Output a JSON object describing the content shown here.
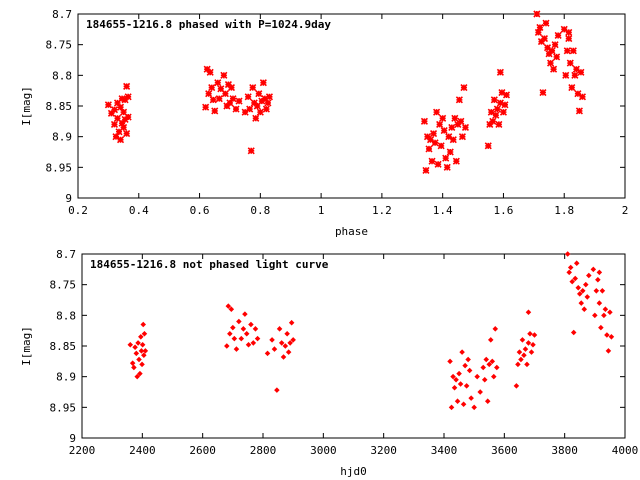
{
  "chart_data": [
    {
      "type": "scatter",
      "title": "184655-1216.8 phased with P=1024.9day",
      "xlabel": "phase",
      "ylabel": "I[mag]",
      "xlim": [
        0.2,
        2
      ],
      "ylim": [
        8.7,
        9
      ],
      "y_inverted": true,
      "xticks": [
        0.2,
        0.4,
        0.6,
        0.8,
        1,
        1.2,
        1.4,
        1.6,
        1.8,
        2
      ],
      "xtick_labels": [
        "0.2",
        "0.4",
        "0.6",
        "0.8",
        "1",
        "1.2",
        "1.4",
        "1.6",
        "1.8",
        "2"
      ],
      "yticks": [
        8.7,
        8.75,
        8.8,
        8.85,
        8.9,
        8.95,
        9
      ],
      "ytick_labels": [
        "8.7",
        "8.75",
        "8.8",
        "8.85",
        "8.9",
        "8.95",
        "9"
      ],
      "grid": false,
      "marker_color": "#ff0000",
      "marker": "asterisk",
      "points": [
        [
          0.3,
          8.848
        ],
        [
          0.31,
          8.862
        ],
        [
          0.32,
          8.88
        ],
        [
          0.32,
          8.856
        ],
        [
          0.325,
          8.9
        ],
        [
          0.33,
          8.845
        ],
        [
          0.33,
          8.87
        ],
        [
          0.335,
          8.892
        ],
        [
          0.34,
          8.852
        ],
        [
          0.34,
          8.905
        ],
        [
          0.345,
          8.838
        ],
        [
          0.345,
          8.878
        ],
        [
          0.35,
          8.86
        ],
        [
          0.35,
          8.885
        ],
        [
          0.355,
          8.84
        ],
        [
          0.355,
          8.872
        ],
        [
          0.36,
          8.818
        ],
        [
          0.36,
          8.895
        ],
        [
          0.365,
          8.835
        ],
        [
          0.365,
          8.868
        ],
        [
          0.62,
          8.852
        ],
        [
          0.625,
          8.79
        ],
        [
          0.63,
          8.83
        ],
        [
          0.635,
          8.795
        ],
        [
          0.64,
          8.82
        ],
        [
          0.645,
          8.84
        ],
        [
          0.65,
          8.858
        ],
        [
          0.66,
          8.812
        ],
        [
          0.665,
          8.838
        ],
        [
          0.67,
          8.822
        ],
        [
          0.68,
          8.8
        ],
        [
          0.685,
          8.83
        ],
        [
          0.69,
          8.85
        ],
        [
          0.695,
          8.815
        ],
        [
          0.7,
          8.845
        ],
        [
          0.705,
          8.82
        ],
        [
          0.71,
          8.838
        ],
        [
          0.72,
          8.855
        ],
        [
          0.73,
          8.842
        ],
        [
          0.75,
          8.86
        ],
        [
          0.76,
          8.835
        ],
        [
          0.765,
          8.855
        ],
        [
          0.77,
          8.923
        ],
        [
          0.775,
          8.82
        ],
        [
          0.78,
          8.845
        ],
        [
          0.785,
          8.87
        ],
        [
          0.79,
          8.85
        ],
        [
          0.795,
          8.83
        ],
        [
          0.8,
          8.86
        ],
        [
          0.805,
          8.842
        ],
        [
          0.81,
          8.812
        ],
        [
          0.815,
          8.838
        ],
        [
          0.82,
          8.855
        ],
        [
          0.825,
          8.845
        ],
        [
          0.83,
          8.835
        ],
        [
          1.34,
          8.875
        ],
        [
          1.345,
          8.955
        ],
        [
          1.35,
          8.9
        ],
        [
          1.355,
          8.92
        ],
        [
          1.36,
          8.905
        ],
        [
          1.365,
          8.94
        ],
        [
          1.37,
          8.895
        ],
        [
          1.375,
          8.91
        ],
        [
          1.38,
          8.86
        ],
        [
          1.385,
          8.945
        ],
        [
          1.39,
          8.88
        ],
        [
          1.395,
          8.915
        ],
        [
          1.4,
          8.87
        ],
        [
          1.405,
          8.89
        ],
        [
          1.41,
          8.935
        ],
        [
          1.415,
          8.95
        ],
        [
          1.42,
          8.9
        ],
        [
          1.425,
          8.925
        ],
        [
          1.43,
          8.885
        ],
        [
          1.435,
          8.905
        ],
        [
          1.44,
          8.87
        ],
        [
          1.445,
          8.94
        ],
        [
          1.45,
          8.88
        ],
        [
          1.455,
          8.84
        ],
        [
          1.46,
          8.875
        ],
        [
          1.465,
          8.9
        ],
        [
          1.47,
          8.82
        ],
        [
          1.475,
          8.885
        ],
        [
          1.55,
          8.915
        ],
        [
          1.555,
          8.88
        ],
        [
          1.56,
          8.86
        ],
        [
          1.565,
          8.875
        ],
        [
          1.57,
          8.84
        ],
        [
          1.575,
          8.865
        ],
        [
          1.58,
          8.855
        ],
        [
          1.585,
          8.88
        ],
        [
          1.59,
          8.845
        ],
        [
          1.595,
          8.828
        ],
        [
          1.6,
          8.86
        ],
        [
          1.605,
          8.848
        ],
        [
          1.61,
          8.832
        ],
        [
          1.59,
          8.795
        ],
        [
          1.71,
          8.7
        ],
        [
          1.715,
          8.73
        ],
        [
          1.72,
          8.722
        ],
        [
          1.725,
          8.745
        ],
        [
          1.73,
          8.828
        ],
        [
          1.735,
          8.74
        ],
        [
          1.74,
          8.715
        ],
        [
          1.745,
          8.755
        ],
        [
          1.75,
          8.765
        ],
        [
          1.755,
          8.78
        ],
        [
          1.76,
          8.76
        ],
        [
          1.765,
          8.79
        ],
        [
          1.77,
          8.75
        ],
        [
          1.775,
          8.77
        ],
        [
          1.78,
          8.735
        ],
        [
          1.8,
          8.725
        ],
        [
          1.805,
          8.8
        ],
        [
          1.81,
          8.76
        ],
        [
          1.815,
          8.74
        ],
        [
          1.82,
          8.78
        ],
        [
          1.825,
          8.82
        ],
        [
          1.83,
          8.76
        ],
        [
          1.835,
          8.8
        ],
        [
          1.84,
          8.79
        ],
        [
          1.845,
          8.83
        ],
        [
          1.85,
          8.858
        ],
        [
          1.855,
          8.795
        ],
        [
          1.86,
          8.835
        ],
        [
          1.815,
          8.73
        ]
      ]
    },
    {
      "type": "scatter",
      "title": "184655-1216.8 not phased light curve",
      "xlabel": "hjd0",
      "ylabel": "I[mag]",
      "xlim": [
        2200,
        4000
      ],
      "ylim": [
        8.7,
        9
      ],
      "y_inverted": true,
      "xticks": [
        2200,
        2400,
        2600,
        2800,
        3000,
        3200,
        3400,
        3600,
        3800,
        4000
      ],
      "xtick_labels": [
        "2200",
        "2400",
        "2600",
        "2800",
        "3000",
        "3200",
        "3400",
        "3600",
        "3800",
        "4000"
      ],
      "yticks": [
        8.7,
        8.75,
        8.8,
        8.85,
        8.9,
        8.95,
        9
      ],
      "ytick_labels": [
        "8.7",
        "8.75",
        "8.8",
        "8.85",
        "8.9",
        "8.95",
        "9"
      ],
      "grid": false,
      "marker_color": "#ff0000",
      "marker": "diamond",
      "points": [
        [
          2360,
          8.848
        ],
        [
          2368,
          8.878
        ],
        [
          2372,
          8.885
        ],
        [
          2376,
          8.852
        ],
        [
          2380,
          8.862
        ],
        [
          2383,
          8.9
        ],
        [
          2386,
          8.845
        ],
        [
          2389,
          8.872
        ],
        [
          2392,
          8.895
        ],
        [
          2395,
          8.835
        ],
        [
          2397,
          8.858
        ],
        [
          2399,
          8.88
        ],
        [
          2401,
          8.848
        ],
        [
          2403,
          8.815
        ],
        [
          2405,
          8.865
        ],
        [
          2407,
          8.83
        ],
        [
          2410,
          8.858
        ],
        [
          2680,
          8.85
        ],
        [
          2685,
          8.785
        ],
        [
          2690,
          8.83
        ],
        [
          2695,
          8.79
        ],
        [
          2700,
          8.82
        ],
        [
          2705,
          8.838
        ],
        [
          2712,
          8.855
        ],
        [
          2720,
          8.81
        ],
        [
          2728,
          8.838
        ],
        [
          2735,
          8.822
        ],
        [
          2740,
          8.798
        ],
        [
          2746,
          8.83
        ],
        [
          2752,
          8.848
        ],
        [
          2760,
          8.815
        ],
        [
          2768,
          8.845
        ],
        [
          2775,
          8.822
        ],
        [
          2782,
          8.838
        ],
        [
          2815,
          8.862
        ],
        [
          2830,
          8.84
        ],
        [
          2838,
          8.855
        ],
        [
          2846,
          8.922
        ],
        [
          2855,
          8.822
        ],
        [
          2862,
          8.845
        ],
        [
          2868,
          8.868
        ],
        [
          2874,
          8.85
        ],
        [
          2880,
          8.83
        ],
        [
          2885,
          8.86
        ],
        [
          2890,
          8.845
        ],
        [
          2895,
          8.812
        ],
        [
          2900,
          8.84
        ],
        [
          3420,
          8.875
        ],
        [
          3425,
          8.95
        ],
        [
          3430,
          8.9
        ],
        [
          3435,
          8.918
        ],
        [
          3440,
          8.905
        ],
        [
          3445,
          8.94
        ],
        [
          3450,
          8.895
        ],
        [
          3455,
          8.912
        ],
        [
          3460,
          8.86
        ],
        [
          3465,
          8.945
        ],
        [
          3470,
          8.882
        ],
        [
          3475,
          8.915
        ],
        [
          3480,
          8.872
        ],
        [
          3485,
          8.89
        ],
        [
          3490,
          8.935
        ],
        [
          3500,
          8.95
        ],
        [
          3510,
          8.9
        ],
        [
          3520,
          8.925
        ],
        [
          3530,
          8.885
        ],
        [
          3535,
          8.905
        ],
        [
          3540,
          8.872
        ],
        [
          3545,
          8.94
        ],
        [
          3550,
          8.88
        ],
        [
          3555,
          8.84
        ],
        [
          3560,
          8.875
        ],
        [
          3565,
          8.9
        ],
        [
          3570,
          8.822
        ],
        [
          3575,
          8.885
        ],
        [
          3640,
          8.915
        ],
        [
          3645,
          8.88
        ],
        [
          3650,
          8.86
        ],
        [
          3655,
          8.872
        ],
        [
          3660,
          8.84
        ],
        [
          3665,
          8.865
        ],
        [
          3670,
          8.855
        ],
        [
          3675,
          8.88
        ],
        [
          3680,
          8.845
        ],
        [
          3685,
          8.83
        ],
        [
          3690,
          8.86
        ],
        [
          3695,
          8.848
        ],
        [
          3700,
          8.832
        ],
        [
          3680,
          8.795
        ],
        [
          3810,
          8.7
        ],
        [
          3815,
          8.73
        ],
        [
          3820,
          8.722
        ],
        [
          3825,
          8.745
        ],
        [
          3830,
          8.828
        ],
        [
          3835,
          8.74
        ],
        [
          3840,
          8.715
        ],
        [
          3845,
          8.755
        ],
        [
          3850,
          8.765
        ],
        [
          3855,
          8.78
        ],
        [
          3860,
          8.76
        ],
        [
          3865,
          8.79
        ],
        [
          3870,
          8.75
        ],
        [
          3875,
          8.77
        ],
        [
          3880,
          8.735
        ],
        [
          3895,
          8.725
        ],
        [
          3900,
          8.8
        ],
        [
          3905,
          8.76
        ],
        [
          3910,
          8.742
        ],
        [
          3915,
          8.78
        ],
        [
          3920,
          8.82
        ],
        [
          3925,
          8.76
        ],
        [
          3930,
          8.8
        ],
        [
          3935,
          8.79
        ],
        [
          3940,
          8.832
        ],
        [
          3945,
          8.858
        ],
        [
          3950,
          8.795
        ],
        [
          3955,
          8.835
        ],
        [
          3915,
          8.73
        ]
      ]
    }
  ]
}
